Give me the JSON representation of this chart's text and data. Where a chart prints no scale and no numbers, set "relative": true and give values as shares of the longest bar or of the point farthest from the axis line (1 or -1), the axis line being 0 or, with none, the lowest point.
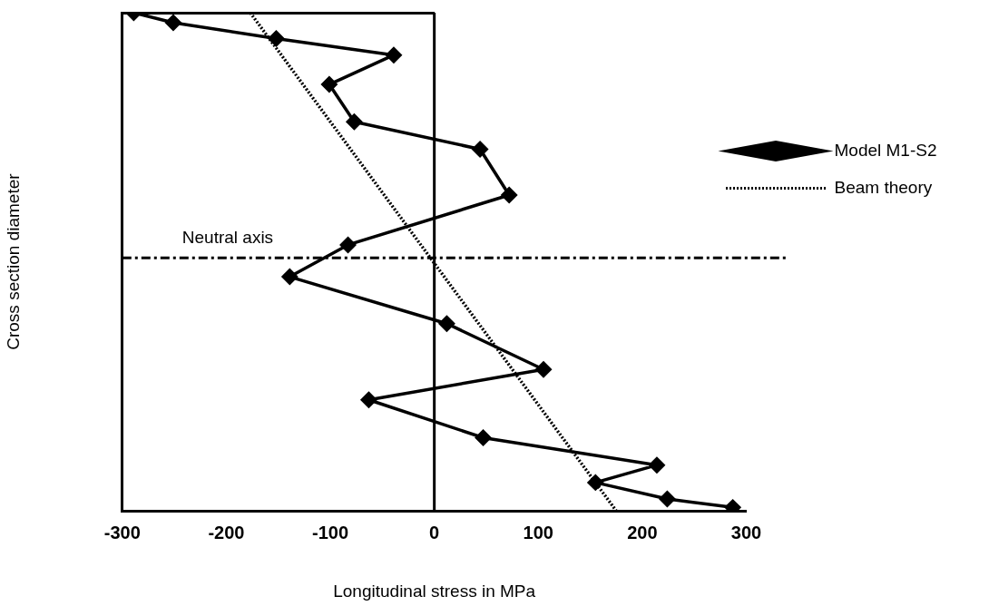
{
  "chart_data": {
    "type": "line",
    "xlabel": "Longitudinal stress in MPa",
    "ylabel": "Cross section diameter",
    "relative": true,
    "xlim": [
      -300,
      300
    ],
    "xticks": [
      -300,
      -200,
      -100,
      0,
      100,
      200,
      300
    ],
    "grid": false,
    "legend": "top right",
    "series": [
      {
        "name": "Model M1-S2",
        "color": "#000000",
        "marker": "diamond",
        "line_style": "solid",
        "x": [
          -289,
          -251,
          -152,
          -39,
          -101,
          -77,
          44,
          72,
          -83,
          -139,
          12,
          105,
          -63,
          47,
          214,
          155,
          224,
          287
        ],
        "values": [
          1.0,
          0.98,
          0.948,
          0.915,
          0.856,
          0.781,
          0.726,
          0.634,
          0.534,
          0.47,
          0.376,
          0.284,
          0.223,
          0.147,
          0.092,
          0.057,
          0.024,
          0.007
        ]
      },
      {
        "name": "Beam theory",
        "color": "#000000",
        "marker": "none",
        "line_style": "dotted",
        "x": [
          -177,
          175
        ],
        "values": [
          1.0,
          0
        ]
      }
    ],
    "ref_lines": [
      {
        "axis": "y",
        "value": 0.508,
        "label": "Neutral axis",
        "line_style": "dashed",
        "color": "#000000"
      },
      {
        "axis": "x",
        "value": 0,
        "color": "#000000",
        "line_style": "solid"
      }
    ]
  }
}
